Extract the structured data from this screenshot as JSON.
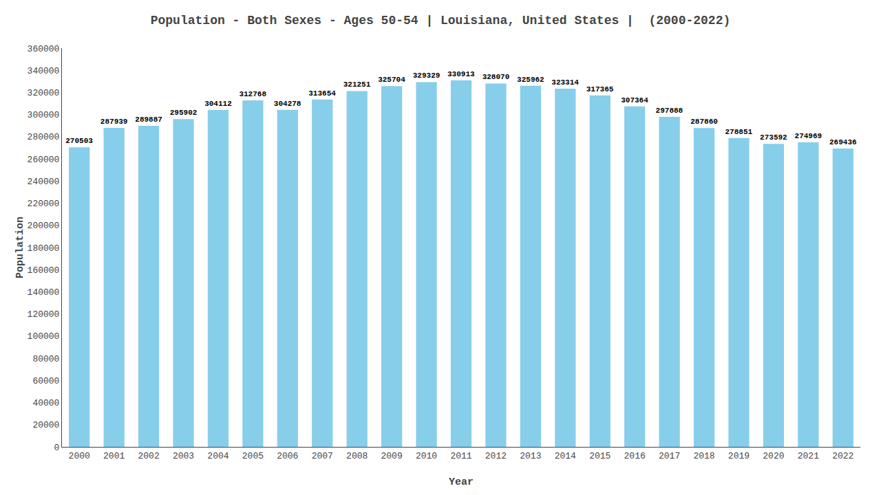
{
  "chart_data": {
    "type": "bar",
    "title": "Population - Both Sexes - Ages 50-54 | Louisiana, United States |  (2000-2022)",
    "xlabel": "Year",
    "ylabel": "Population",
    "categories": [
      "2000",
      "2001",
      "2002",
      "2003",
      "2004",
      "2005",
      "2006",
      "2007",
      "2008",
      "2009",
      "2010",
      "2011",
      "2012",
      "2013",
      "2014",
      "2015",
      "2016",
      "2017",
      "2018",
      "2019",
      "2020",
      "2021",
      "2022"
    ],
    "values": [
      270503,
      287939,
      289887,
      295902,
      304112,
      312768,
      304278,
      313654,
      321251,
      325704,
      329329,
      330913,
      328070,
      325962,
      323314,
      317365,
      307364,
      297888,
      287860,
      278851,
      273592,
      274969,
      269436
    ],
    "color": "#87CEEB",
    "ylim": [
      0,
      360000
    ],
    "yticks": [
      0,
      20000,
      40000,
      60000,
      80000,
      100000,
      120000,
      140000,
      160000,
      180000,
      200000,
      220000,
      240000,
      260000,
      280000,
      300000,
      320000,
      340000,
      360000
    ],
    "grid": false,
    "data_labels": true
  }
}
